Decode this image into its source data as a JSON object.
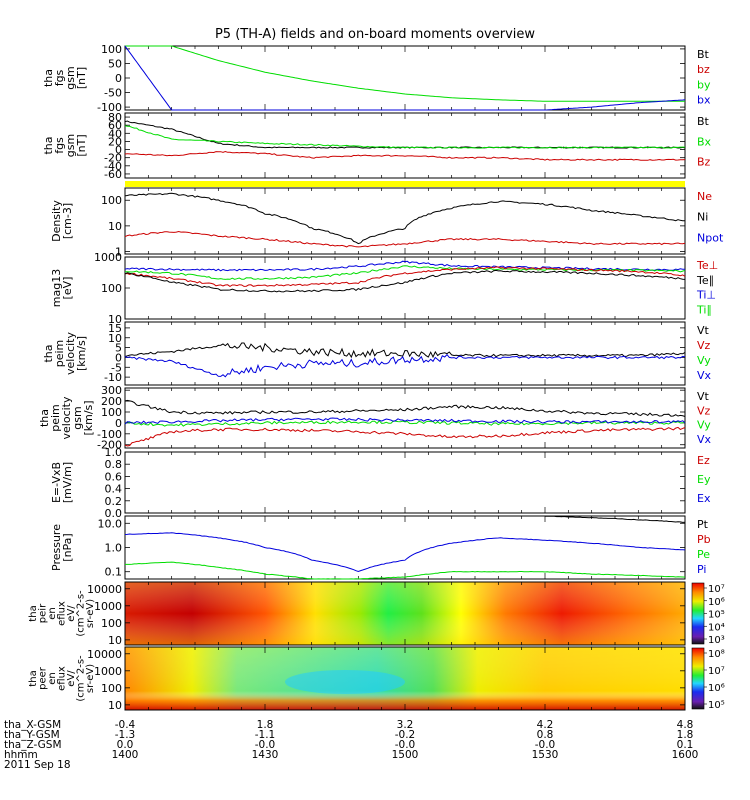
{
  "title": "P5 (TH-A) fields and on-board moments overview",
  "colors": {
    "black": "#000000",
    "red": "#cc0000",
    "green": "#00dd00",
    "blue": "#0000dd",
    "yellow": "#ffff00"
  },
  "panels": [
    {
      "id": "fgs_gsm",
      "ylabel": [
        "tha",
        "fgs",
        "gsm",
        "[nT]"
      ],
      "yticks": [
        "100",
        "50",
        "0",
        "-50",
        "-100"
      ],
      "ylim": [
        -110,
        110
      ],
      "legend": [
        {
          "text": "Bt",
          "color": "#000000"
        },
        {
          "text": "bz",
          "color": "#cc0000"
        },
        {
          "text": "by",
          "color": "#00dd00"
        },
        {
          "text": "bx",
          "color": "#0000dd"
        }
      ]
    },
    {
      "id": "fgs_gse_zoom",
      "ylabel": [
        "tha",
        "fgs",
        "gsm",
        "[nT]"
      ],
      "yticks": [
        "80",
        "60",
        "40",
        "20",
        "0",
        "-20",
        "-40",
        "-60"
      ],
      "ylim": [
        -70,
        90
      ],
      "legend": [
        {
          "text": "Bt",
          "color": "#000000"
        },
        {
          "text": "Bx",
          "color": "#00dd00"
        },
        {
          "text": "Bz",
          "color": "#cc0000"
        }
      ]
    },
    {
      "id": "density",
      "ylabel": [
        "Density",
        "[cm-3]"
      ],
      "yticks": [
        "100",
        "10",
        "1"
      ],
      "ylim": [
        0.8,
        300
      ],
      "log": true,
      "legend": [
        {
          "text": "Ne",
          "color": "#cc0000"
        },
        {
          "text": "Ni",
          "color": "#000000"
        },
        {
          "text": "Npot",
          "color": "#0000dd"
        }
      ]
    },
    {
      "id": "temperature",
      "ylabel": [
        "mag13",
        "[eV]"
      ],
      "yticks": [
        "1000",
        "100",
        "10"
      ],
      "ylim": [
        10,
        1000
      ],
      "log": true,
      "legend": [
        {
          "text": "Te⊥",
          "color": "#cc0000"
        },
        {
          "text": "Te∥",
          "color": "#000000"
        },
        {
          "text": "Ti⊥",
          "color": "#0000dd"
        },
        {
          "text": "Ti∥",
          "color": "#00dd00"
        }
      ]
    },
    {
      "id": "velocity_dsl",
      "ylabel": [
        "tha",
        "peim",
        "velocity",
        "[km/s]"
      ],
      "yticks": [
        "15",
        "10",
        "5",
        "0",
        "-5",
        "-10"
      ],
      "ylim": [
        -14,
        18
      ],
      "legend": [
        {
          "text": "Vt",
          "color": "#000000"
        },
        {
          "text": "Vz",
          "color": "#cc0000"
        },
        {
          "text": "Vy",
          "color": "#00dd00"
        },
        {
          "text": "Vx",
          "color": "#0000dd"
        }
      ]
    },
    {
      "id": "velocity_gsm",
      "ylabel": [
        "tha",
        "peim",
        "velocity",
        "gsm",
        "[km/s]"
      ],
      "yticks": [
        "300",
        "200",
        "100",
        "0",
        "-100",
        "-200"
      ],
      "ylim": [
        -230,
        320
      ],
      "legend": [
        {
          "text": "Vt",
          "color": "#000000"
        },
        {
          "text": "Vz",
          "color": "#cc0000"
        },
        {
          "text": "Vy",
          "color": "#00dd00"
        },
        {
          "text": "Vx",
          "color": "#0000dd"
        }
      ]
    },
    {
      "id": "efield",
      "ylabel": [
        "E=-VxB",
        "[mV/m]"
      ],
      "yticks": [
        "1.0",
        "0.8",
        "0.6",
        "0.4",
        "0.2",
        "0.0"
      ],
      "ylim": [
        0,
        1.0
      ],
      "legend": [
        {
          "text": "Ez",
          "color": "#cc0000"
        },
        {
          "text": "Ey",
          "color": "#00dd00"
        },
        {
          "text": "Ex",
          "color": "#0000dd"
        }
      ]
    },
    {
      "id": "pressure",
      "ylabel": [
        "Pressure",
        "[nPa]"
      ],
      "yticks": [
        "10.0",
        "1.0",
        "0.1"
      ],
      "ylim": [
        0.05,
        20
      ],
      "log": true,
      "legend": [
        {
          "text": "Pt",
          "color": "#000000"
        },
        {
          "text": "Pb",
          "color": "#cc0000"
        },
        {
          "text": "Pe",
          "color": "#00dd00"
        },
        {
          "text": "Pi",
          "color": "#0000dd"
        }
      ]
    },
    {
      "id": "peir_spec",
      "ylabel": [
        "tha",
        "peir",
        "en",
        "eflux",
        "eV/",
        "(cm^2-s-",
        "sr-eV)"
      ],
      "yticks": [
        "10000",
        "1000",
        "100",
        "10"
      ],
      "ylim": [
        5,
        25000
      ],
      "log": true,
      "spectrogram": true,
      "cbar_ticks": [
        "10⁷",
        "10⁶",
        "10⁵",
        "10⁴",
        "10³"
      ]
    },
    {
      "id": "peer_spec",
      "ylabel": [
        "tha",
        "peer",
        "en",
        "eflux",
        "eV/",
        "(cm^2-s-",
        "sr-eV)"
      ],
      "yticks": [
        "10000",
        "1000",
        "100",
        "10"
      ],
      "ylim": [
        5,
        25000
      ],
      "log": true,
      "spectrogram": true,
      "cbar_ticks": [
        "10⁸",
        "10⁷",
        "10⁶",
        "10⁵"
      ]
    }
  ],
  "footer": {
    "row_labels": [
      "tha_X-GSM",
      "tha_Y-GSM",
      "tha_Z-GSM",
      "hhmm",
      "2011 Sep 18"
    ],
    "columns": [
      [
        "-0.4",
        "-1.3",
        "0.0",
        "1400"
      ],
      [
        "1.8",
        "-1.1",
        "-0.0",
        "1430"
      ],
      [
        "3.2",
        "-0.2",
        "-0.0",
        "1500"
      ],
      [
        "4.2",
        "0.8",
        "-0.0",
        "1530"
      ],
      [
        "4.8",
        "1.8",
        "0.1",
        "1600"
      ]
    ]
  },
  "chart_data": {
    "type": "line",
    "title": "P5 (TH-A) fields and on-board moments overview",
    "x_unit": "hhmm",
    "x": [
      "1400",
      "1410",
      "1420",
      "1430",
      "1440",
      "1450",
      "1500",
      "1510",
      "1520",
      "1530",
      "1540",
      "1550",
      "1600"
    ],
    "panels": {
      "fgs_gsm": {
        "series": [
          {
            "name": "by",
            "values": [
              110,
              110,
              60,
              20,
              -10,
              -35,
              -55,
              -68,
              -75,
              -80,
              -80,
              -80,
              -80
            ]
          },
          {
            "name": "bx",
            "values": [
              110,
              -110,
              -110,
              -110,
              -110,
              -110,
              -110,
              -110,
              -110,
              -110,
              -100,
              -85,
              -75
            ]
          }
        ]
      },
      "fgs_gse_zoom": {
        "series": [
          {
            "name": "Bt",
            "values": [
              70,
              50,
              15,
              5,
              5,
              5,
              5,
              5,
              5,
              5,
              5,
              5,
              5
            ]
          },
          {
            "name": "Bx",
            "values": [
              60,
              25,
              20,
              15,
              12,
              8,
              5,
              5,
              5,
              5,
              5,
              5,
              5
            ]
          },
          {
            "name": "Bz",
            "values": [
              -10,
              -15,
              -5,
              -10,
              -20,
              -15,
              -15,
              -20,
              -20,
              -25,
              -25,
              -25,
              -25
            ]
          }
        ]
      },
      "density": {
        "series": [
          {
            "name": "Ni",
            "values": [
              150,
              180,
              100,
              30,
              8,
              2,
              8,
              50,
              90,
              70,
              40,
              25,
              15
            ]
          },
          {
            "name": "Ne",
            "values": [
              4,
              6,
              4,
              3,
              2,
              1.5,
              2,
              3,
              3,
              2.5,
              2,
              2,
              2
            ]
          }
        ]
      },
      "temperature": {
        "series": [
          {
            "name": "Ti⊥",
            "values": [
              420,
              400,
              380,
              380,
              400,
              500,
              700,
              520,
              480,
              450,
              420,
              400,
              390
            ]
          },
          {
            "name": "Ti∥",
            "values": [
              350,
              300,
              200,
              200,
              220,
              300,
              500,
              420,
              400,
              390,
              380,
              370,
              350
            ]
          },
          {
            "name": "Te⊥",
            "values": [
              300,
              200,
              120,
              120,
              130,
              150,
              300,
              400,
              450,
              420,
              380,
              340,
              250
            ]
          },
          {
            "name": "Te∥",
            "values": [
              300,
              150,
              90,
              80,
              80,
              90,
              150,
              300,
              350,
              330,
              300,
              250,
              200
            ]
          }
        ]
      },
      "velocity_dsl": {
        "series": [
          {
            "name": "Vt",
            "values": [
              1,
              3,
              6,
              5,
              3,
              2,
              2,
              1,
              1,
              1,
              1,
              1,
              2
            ]
          },
          {
            "name": "Vx",
            "values": [
              0,
              -2,
              -9,
              -5,
              -3,
              -3,
              -1,
              0,
              0,
              0,
              0,
              0,
              0
            ]
          }
        ]
      },
      "velocity_gsm": {
        "series": [
          {
            "name": "Vt",
            "values": [
              200,
              100,
              90,
              100,
              100,
              110,
              120,
              150,
              140,
              110,
              90,
              80,
              70
            ]
          },
          {
            "name": "Vz",
            "values": [
              -210,
              -80,
              -60,
              -60,
              -70,
              -80,
              -100,
              -130,
              -120,
              -90,
              -70,
              -60,
              -50
            ]
          },
          {
            "name": "Vy",
            "values": [
              0,
              -20,
              -10,
              0,
              5,
              10,
              5,
              0,
              -10,
              -5,
              0,
              0,
              0
            ]
          },
          {
            "name": "Vx",
            "values": [
              0,
              10,
              20,
              30,
              35,
              30,
              25,
              20,
              15,
              10,
              10,
              10,
              10
            ]
          }
        ]
      },
      "pressure": {
        "series": [
          {
            "name": "Pi",
            "values": [
              3.5,
              4,
              2.5,
              1.0,
              0.3,
              0.1,
              0.3,
              1.5,
              2.5,
              2.0,
              1.5,
              1.0,
              0.8
            ]
          },
          {
            "name": "Pe",
            "values": [
              0.2,
              0.25,
              0.15,
              0.08,
              0.05,
              0.05,
              0.06,
              0.1,
              0.1,
              0.1,
              0.08,
              0.07,
              0.06
            ]
          },
          {
            "name": "Pt",
            "values": [
              null,
              null,
              null,
              null,
              null,
              null,
              null,
              null,
              null,
              20,
              17,
              14,
              11
            ]
          }
        ]
      }
    }
  }
}
